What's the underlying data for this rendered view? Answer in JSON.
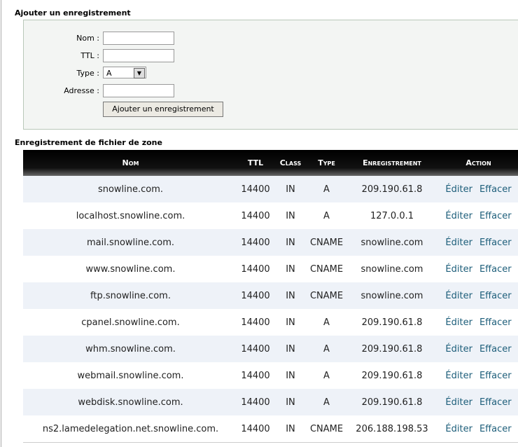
{
  "form": {
    "title": "Ajouter un enregistrement",
    "fields": [
      {
        "label": "Nom :"
      },
      {
        "label": "TTL :"
      },
      {
        "label": "Type :",
        "value": "A"
      },
      {
        "label": "Adresse :"
      }
    ],
    "button": "Ajouter un enregistrement"
  },
  "table": {
    "title": "Enregistrement de fichier de zone",
    "headers": [
      "Nom",
      "TTL",
      "Class",
      "Type",
      "Enregistrement",
      "Action"
    ],
    "rows": [
      [
        "snowline.com.",
        "14400",
        "IN",
        "A",
        "209.190.61.8",
        "Éditer",
        "Effacer"
      ],
      [
        "localhost.snowline.com.",
        "14400",
        "IN",
        "A",
        "127.0.0.1",
        "Éditer",
        "Effacer"
      ],
      [
        "mail.snowline.com.",
        "14400",
        "IN",
        "CNAME",
        "snowline.com",
        "Éditer",
        "Effacer"
      ],
      [
        "www.snowline.com.",
        "14400",
        "IN",
        "CNAME",
        "snowline.com",
        "Éditer",
        "Effacer"
      ],
      [
        "ftp.snowline.com.",
        "14400",
        "IN",
        "CNAME",
        "snowline.com",
        "Éditer",
        "Effacer"
      ],
      [
        "cpanel.snowline.com.",
        "14400",
        "IN",
        "A",
        "209.190.61.8",
        "Éditer",
        "Effacer"
      ],
      [
        "whm.snowline.com.",
        "14400",
        "IN",
        "A",
        "209.190.61.8",
        "Éditer",
        "Effacer"
      ],
      [
        "webmail.snowline.com.",
        "14400",
        "IN",
        "A",
        "209.190.61.8",
        "Éditer",
        "Effacer"
      ],
      [
        "webdisk.snowline.com.",
        "14400",
        "IN",
        "A",
        "209.190.61.8",
        "Éditer",
        "Effacer"
      ],
      [
        "ns2.lamedelegation.net.snowline.com.",
        "14400",
        "IN",
        "CNAME",
        "206.188.198.53",
        "Éditer",
        "Effacer"
      ]
    ]
  }
}
